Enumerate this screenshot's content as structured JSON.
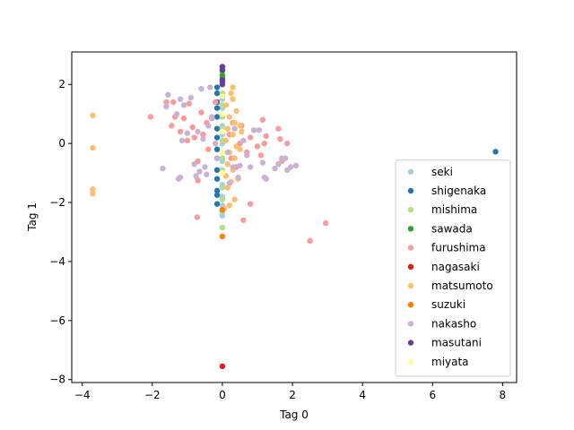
{
  "chart_data": {
    "type": "scatter",
    "xlabel": "Tag 0",
    "ylabel": "Tag 1",
    "xlim": [
      -4.3,
      8.4
    ],
    "ylim": [
      -8.1,
      3.1
    ],
    "xticks": [
      -4,
      -2,
      0,
      2,
      4,
      6,
      8
    ],
    "yticks": [
      -8,
      -6,
      -4,
      -2,
      0,
      2
    ],
    "grid": false,
    "legend_position": "lower-right",
    "series": [
      {
        "name": "seki",
        "color": "#a6cee3",
        "points": [
          [
            0,
            -2.45
          ],
          [
            0,
            -2.3
          ],
          [
            0,
            -2.1
          ],
          [
            0,
            -1.8
          ],
          [
            0,
            -1.4
          ],
          [
            0,
            -1.0
          ],
          [
            0,
            -0.6
          ],
          [
            0,
            -0.3
          ],
          [
            0,
            0.0
          ],
          [
            0,
            0.3
          ],
          [
            0,
            0.6
          ],
          [
            0,
            0.9
          ],
          [
            0,
            1.2
          ],
          [
            0,
            1.5
          ]
        ]
      },
      {
        "name": "shigenaka",
        "color": "#1f78b4",
        "points": [
          [
            7.8,
            -0.28
          ],
          [
            -0.15,
            -2.05
          ],
          [
            -0.15,
            -1.75
          ],
          [
            -0.15,
            -1.6
          ],
          [
            -0.15,
            -1.2
          ],
          [
            -0.15,
            -0.9
          ],
          [
            -0.15,
            -0.5
          ],
          [
            -0.15,
            -0.2
          ],
          [
            -0.15,
            0.2
          ],
          [
            -0.15,
            0.5
          ],
          [
            -0.15,
            0.9
          ],
          [
            -0.15,
            1.2
          ],
          [
            -0.15,
            1.4
          ],
          [
            -0.15,
            1.7
          ],
          [
            -0.15,
            1.9
          ]
        ]
      },
      {
        "name": "mishima",
        "color": "#b2df8a",
        "points": [
          [
            0,
            -2.85
          ],
          [
            0,
            -1.9
          ],
          [
            0,
            -1.5
          ],
          [
            0,
            -0.9
          ],
          [
            0,
            -0.5
          ],
          [
            0,
            0.1
          ],
          [
            0,
            0.5
          ],
          [
            0,
            0.9
          ],
          [
            0,
            1.3
          ],
          [
            0,
            1.7
          ],
          [
            0,
            2.0
          ]
        ]
      },
      {
        "name": "sawada",
        "color": "#33a02c",
        "points": [
          [
            0,
            2.2
          ],
          [
            0,
            2.3
          ],
          [
            0,
            2.45
          ]
        ]
      },
      {
        "name": "furushima",
        "color": "#fb9a99",
        "points": [
          [
            -2.05,
            0.9
          ],
          [
            -1.6,
            1.4
          ],
          [
            -1.4,
            1.4
          ],
          [
            -1.45,
            0.6
          ],
          [
            -1.35,
            0.9
          ],
          [
            -1.2,
            0.4
          ],
          [
            -1.1,
            0.85
          ],
          [
            -1.0,
            0.1
          ],
          [
            -0.95,
            1.35
          ],
          [
            -0.85,
            0.55
          ],
          [
            -0.8,
            0.2
          ],
          [
            -0.7,
            -0.6
          ],
          [
            -0.7,
            -1.25
          ],
          [
            -0.72,
            -2.5
          ],
          [
            -0.6,
            1.05
          ],
          [
            -0.55,
            0.3
          ],
          [
            -0.45,
            0.7
          ],
          [
            -0.4,
            -0.2
          ],
          [
            -0.3,
            0.85
          ],
          [
            -0.2,
            1.4
          ],
          [
            0.2,
            0.3
          ],
          [
            0.25,
            -0.5
          ],
          [
            0.3,
            0.7
          ],
          [
            0.4,
            -0.8
          ],
          [
            0.5,
            0.0
          ],
          [
            0.55,
            0.6
          ],
          [
            0.6,
            -2.6
          ],
          [
            0.7,
            -0.3
          ],
          [
            0.8,
            0.2
          ],
          [
            0.8,
            -2.05
          ],
          [
            0.9,
            0.45
          ],
          [
            1.0,
            -0.1
          ],
          [
            1.1,
            -0.4
          ],
          [
            1.15,
            0.8
          ],
          [
            1.2,
            0.0
          ],
          [
            1.25,
            0.25
          ],
          [
            1.6,
            0.5
          ],
          [
            1.65,
            0.15
          ],
          [
            1.7,
            -0.6
          ],
          [
            1.85,
            0.0
          ],
          [
            2.5,
            -3.3
          ],
          [
            2.95,
            -2.7
          ]
        ]
      },
      {
        "name": "nagasaki",
        "color": "#e31a1c",
        "points": [
          [
            0,
            -7.55
          ]
        ]
      },
      {
        "name": "matsumoto",
        "color": "#fdbf6f",
        "points": [
          [
            -3.7,
            0.95
          ],
          [
            -3.7,
            -0.15
          ],
          [
            -3.7,
            -1.55
          ],
          [
            -3.7,
            -1.7
          ],
          [
            0.05,
            -2.2
          ],
          [
            0.2,
            -2.1
          ],
          [
            0.15,
            -1.5
          ],
          [
            0.25,
            -1.3
          ],
          [
            0.35,
            -1.9
          ],
          [
            0.1,
            -1.1
          ],
          [
            0.3,
            -0.9
          ],
          [
            0.15,
            -0.7
          ],
          [
            0.35,
            -0.5
          ],
          [
            0.2,
            -0.3
          ],
          [
            0.4,
            -0.1
          ],
          [
            0.1,
            0.1
          ],
          [
            0.3,
            0.3
          ],
          [
            0.15,
            0.5
          ],
          [
            0.35,
            0.7
          ],
          [
            0.2,
            0.9
          ],
          [
            0.4,
            1.1
          ],
          [
            0.1,
            1.3
          ],
          [
            0.3,
            1.5
          ],
          [
            0.25,
            1.7
          ],
          [
            0.3,
            1.9
          ],
          [
            0.5,
            -0.2
          ],
          [
            0.55,
            0.4
          ],
          [
            0.45,
            -1.2
          ],
          [
            0.5,
            0.6
          ]
        ]
      },
      {
        "name": "suzuki",
        "color": "#ff7f00",
        "points": [
          [
            0,
            -3.15
          ],
          [
            0,
            -2.25
          ]
        ]
      },
      {
        "name": "nakasho",
        "color": "#cab2d6",
        "points": [
          [
            -1.7,
            -0.85
          ],
          [
            -1.55,
            1.65
          ],
          [
            -1.6,
            1.25
          ],
          [
            -1.3,
            1.0
          ],
          [
            -1.25,
            -1.2
          ],
          [
            -1.2,
            -1.15
          ],
          [
            -1.2,
            1.5
          ],
          [
            -1.15,
            0.1
          ],
          [
            -1.1,
            1.3
          ],
          [
            -1.0,
            0.35
          ],
          [
            -0.9,
            1.55
          ],
          [
            -0.8,
            -0.7
          ],
          [
            -0.75,
            -1.1
          ],
          [
            -0.7,
            0.4
          ],
          [
            -0.65,
            -0.95
          ],
          [
            -0.6,
            1.85
          ],
          [
            -0.55,
            0.15
          ],
          [
            -0.5,
            -0.8
          ],
          [
            -0.45,
            -1.05
          ],
          [
            -0.4,
            0.6
          ],
          [
            -0.35,
            1.9
          ],
          [
            -0.3,
            0.9
          ],
          [
            -0.2,
            0.0
          ],
          [
            -0.15,
            -0.5
          ],
          [
            0.15,
            -0.3
          ],
          [
            0.2,
            -1.35
          ],
          [
            0.3,
            -0.8
          ],
          [
            0.35,
            0.5
          ],
          [
            0.45,
            -1.15
          ],
          [
            0.5,
            -0.75
          ],
          [
            0.6,
            0.1
          ],
          [
            0.7,
            -0.4
          ],
          [
            0.8,
            -0.8
          ],
          [
            0.9,
            0.45
          ],
          [
            1.05,
            0.45
          ],
          [
            1.15,
            -0.65
          ],
          [
            1.2,
            -1.15
          ],
          [
            1.25,
            -1.2
          ],
          [
            1.5,
            -0.85
          ],
          [
            1.6,
            -0.7
          ],
          [
            1.7,
            -0.5
          ],
          [
            1.8,
            -0.5
          ],
          [
            1.85,
            -0.9
          ],
          [
            1.95,
            -0.8
          ],
          [
            2.1,
            -0.75
          ]
        ]
      },
      {
        "name": "masutani",
        "color": "#6a3d9a",
        "points": [
          [
            0,
            2.0
          ],
          [
            0,
            2.1
          ],
          [
            0,
            2.15
          ],
          [
            0,
            2.5
          ],
          [
            0,
            2.6
          ]
        ]
      },
      {
        "name": "miyata",
        "color": "#ffff99",
        "points": [
          [
            0,
            -1.0
          ],
          [
            0,
            -0.3
          ],
          [
            0,
            0.4
          ],
          [
            0,
            1.0
          ],
          [
            0,
            1.6
          ]
        ]
      }
    ]
  }
}
